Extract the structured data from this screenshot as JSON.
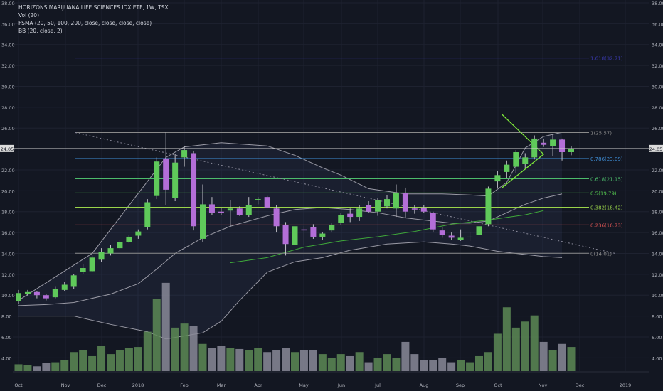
{
  "legend": {
    "title": "HORIZONS MARIJUANA LIFE SCIENCES IDX ETF, 1W, TSX",
    "vol": "Vol (20)",
    "fsma": "FSMA (20, 50, 100, 200, close, close, close, close)",
    "bb": "BB (20, close, 2)"
  },
  "colors": {
    "background": "#131722",
    "up": "#5fc95a",
    "down": "#b36ed8",
    "volume_up": "#5d8a55",
    "volume_down": "#8a8a98",
    "text": "#b2b5be",
    "grid": "#1e2230",
    "price_line": "#d0d0d0"
  },
  "chart_data": {
    "type": "candlestick",
    "ylim": [
      3,
      38
    ],
    "y_ticks": [
      "4.00",
      "6.00",
      "8.00",
      "10.00",
      "12.00",
      "14.00",
      "16.00",
      "18.00",
      "20.00",
      "22.00",
      "24.00",
      "26.00",
      "28.00",
      "30.00",
      "32.00",
      "34.00",
      "36.00",
      "38.00"
    ],
    "x_ticks": [
      "Oct",
      "Nov",
      "Dec",
      "2018",
      "Feb",
      "Mar",
      "Apr",
      "May",
      "Jun",
      "Jul",
      "Aug",
      "Sep",
      "Oct",
      "Nov",
      "Dec",
      "2019"
    ],
    "last_price": "24.05",
    "candles": [
      {
        "o": 9.4,
        "h": 10.5,
        "l": 9.2,
        "c": 10.2
      },
      {
        "o": 10.1,
        "h": 10.5,
        "l": 9.9,
        "c": 10.3
      },
      {
        "o": 10.3,
        "h": 10.4,
        "l": 9.7,
        "c": 10.0
      },
      {
        "o": 10.0,
        "h": 10.1,
        "l": 9.5,
        "c": 9.7
      },
      {
        "o": 9.8,
        "h": 10.8,
        "l": 9.7,
        "c": 10.6
      },
      {
        "o": 10.5,
        "h": 11.3,
        "l": 10.4,
        "c": 11.0
      },
      {
        "o": 10.8,
        "h": 12.0,
        "l": 10.6,
        "c": 11.9
      },
      {
        "o": 12.2,
        "h": 13.0,
        "l": 12.0,
        "c": 12.6
      },
      {
        "o": 12.3,
        "h": 13.8,
        "l": 12.2,
        "c": 13.6
      },
      {
        "o": 13.4,
        "h": 14.5,
        "l": 13.2,
        "c": 14.1
      },
      {
        "o": 14.0,
        "h": 14.8,
        "l": 13.8,
        "c": 14.5
      },
      {
        "o": 14.5,
        "h": 15.3,
        "l": 14.3,
        "c": 15.1
      },
      {
        "o": 15.1,
        "h": 15.8,
        "l": 15.0,
        "c": 15.6
      },
      {
        "o": 15.7,
        "h": 16.3,
        "l": 15.4,
        "c": 16.1
      },
      {
        "o": 16.5,
        "h": 19.2,
        "l": 16.3,
        "c": 18.9
      },
      {
        "o": 19.5,
        "h": 23.2,
        "l": 19.2,
        "c": 22.8
      },
      {
        "o": 23.1,
        "h": 25.6,
        "l": 18.6,
        "c": 20.1
      },
      {
        "o": 19.3,
        "h": 23.5,
        "l": 19.0,
        "c": 22.7
      },
      {
        "o": 23.2,
        "h": 24.3,
        "l": 22.3,
        "c": 23.9
      },
      {
        "o": 23.6,
        "h": 23.8,
        "l": 16.2,
        "c": 16.6
      },
      {
        "o": 15.4,
        "h": 20.6,
        "l": 15.1,
        "c": 18.7
      },
      {
        "o": 18.7,
        "h": 19.4,
        "l": 17.7,
        "c": 17.9
      },
      {
        "o": 18.0,
        "h": 18.4,
        "l": 17.7,
        "c": 17.9
      },
      {
        "o": 18.1,
        "h": 19.1,
        "l": 16.5,
        "c": 18.3
      },
      {
        "o": 18.3,
        "h": 18.5,
        "l": 17.6,
        "c": 17.7
      },
      {
        "o": 17.7,
        "h": 19.4,
        "l": 17.5,
        "c": 18.6
      },
      {
        "o": 19.1,
        "h": 19.4,
        "l": 18.7,
        "c": 19.2
      },
      {
        "o": 19.4,
        "h": 19.5,
        "l": 18.4,
        "c": 18.4
      },
      {
        "o": 18.3,
        "h": 18.6,
        "l": 16.0,
        "c": 16.6
      },
      {
        "o": 16.7,
        "h": 17.0,
        "l": 13.8,
        "c": 14.9
      },
      {
        "o": 14.8,
        "h": 17.0,
        "l": 14.0,
        "c": 16.6
      },
      {
        "o": 16.3,
        "h": 16.6,
        "l": 14.8,
        "c": 16.2
      },
      {
        "o": 16.5,
        "h": 16.8,
        "l": 15.4,
        "c": 15.6
      },
      {
        "o": 15.6,
        "h": 16.0,
        "l": 15.3,
        "c": 15.9
      },
      {
        "o": 16.2,
        "h": 16.9,
        "l": 16.0,
        "c": 16.7
      },
      {
        "o": 16.9,
        "h": 17.9,
        "l": 16.7,
        "c": 17.7
      },
      {
        "o": 17.8,
        "h": 18.3,
        "l": 17.0,
        "c": 17.5
      },
      {
        "o": 17.5,
        "h": 18.6,
        "l": 17.1,
        "c": 18.3
      },
      {
        "o": 18.6,
        "h": 19.0,
        "l": 17.9,
        "c": 18.0
      },
      {
        "o": 18.0,
        "h": 19.3,
        "l": 17.6,
        "c": 19.1
      },
      {
        "o": 18.5,
        "h": 19.6,
        "l": 18.3,
        "c": 19.2
      },
      {
        "o": 18.3,
        "h": 20.6,
        "l": 17.5,
        "c": 19.8
      },
      {
        "o": 19.8,
        "h": 20.3,
        "l": 17.4,
        "c": 18.0
      },
      {
        "o": 18.3,
        "h": 18.6,
        "l": 17.8,
        "c": 18.2
      },
      {
        "o": 18.4,
        "h": 18.6,
        "l": 17.9,
        "c": 18.0
      },
      {
        "o": 17.9,
        "h": 18.0,
        "l": 16.0,
        "c": 16.3
      },
      {
        "o": 16.2,
        "h": 16.5,
        "l": 15.5,
        "c": 15.8
      },
      {
        "o": 15.7,
        "h": 16.0,
        "l": 15.3,
        "c": 15.5
      },
      {
        "o": 15.3,
        "h": 16.3,
        "l": 15.2,
        "c": 15.5
      },
      {
        "o": 15.6,
        "h": 16.0,
        "l": 15.2,
        "c": 15.6
      },
      {
        "o": 15.8,
        "h": 16.9,
        "l": 14.6,
        "c": 16.6
      },
      {
        "o": 16.8,
        "h": 20.4,
        "l": 16.6,
        "c": 20.2
      },
      {
        "o": 20.9,
        "h": 21.9,
        "l": 20.3,
        "c": 21.5
      },
      {
        "o": 21.8,
        "h": 22.9,
        "l": 21.2,
        "c": 22.5
      },
      {
        "o": 22.3,
        "h": 23.9,
        "l": 21.7,
        "c": 23.7
      },
      {
        "o": 22.6,
        "h": 23.6,
        "l": 22.2,
        "c": 23.2
      },
      {
        "o": 23.2,
        "h": 25.3,
        "l": 23.0,
        "c": 25.0
      },
      {
        "o": 24.6,
        "h": 25.0,
        "l": 24.2,
        "c": 24.4
      },
      {
        "o": 24.3,
        "h": 25.4,
        "l": 23.3,
        "c": 24.9
      },
      {
        "o": 24.9,
        "h": 25.0,
        "l": 22.9,
        "c": 23.7
      },
      {
        "o": 23.7,
        "h": 24.3,
        "l": 23.4,
        "c": 24.05
      }
    ],
    "volume": [
      0.4,
      0.35,
      0.3,
      0.45,
      0.5,
      0.6,
      1.0,
      1.1,
      0.8,
      1.3,
      0.9,
      1.1,
      1.2,
      1.25,
      2.0,
      3.6,
      4.4,
      2.2,
      2.4,
      2.3,
      1.4,
      1.2,
      1.3,
      1.2,
      1.15,
      1.1,
      1.2,
      1.0,
      1.1,
      1.2,
      1.0,
      1.1,
      1.1,
      0.9,
      0.7,
      0.9,
      0.8,
      1.0,
      0.5,
      0.7,
      0.9,
      0.7,
      1.5,
      0.9,
      0.6,
      0.6,
      0.7,
      0.5,
      0.6,
      0.5,
      0.8,
      1.0,
      1.9,
      3.2,
      2.2,
      2.5,
      2.8,
      1.5,
      1.1,
      1.4,
      1.25
    ],
    "series": [
      {
        "name": "",
        "kind": "bb_upper",
        "points": [
          [
            0,
            9.5
          ],
          [
            8,
            14
          ],
          [
            16,
            23.2
          ],
          [
            18,
            24.2
          ],
          [
            22,
            24.6
          ],
          [
            27,
            24.3
          ],
          [
            30,
            23.4
          ],
          [
            33,
            22.2
          ],
          [
            35,
            21.5
          ],
          [
            38,
            20.2
          ],
          [
            42,
            19.7
          ],
          [
            46,
            19.7
          ],
          [
            49,
            19.6
          ],
          [
            51,
            19.5
          ],
          [
            53,
            20.8
          ],
          [
            55,
            24.1
          ],
          [
            57,
            25.2
          ],
          [
            59,
            25.6
          ]
        ]
      },
      {
        "name": "",
        "kind": "bb_lower",
        "points": [
          [
            0,
            8
          ],
          [
            6,
            8
          ],
          [
            10,
            7.2
          ],
          [
            14,
            6.5
          ],
          [
            16,
            5.8
          ],
          [
            18,
            6.1
          ],
          [
            20,
            6.4
          ],
          [
            22,
            7.5
          ],
          [
            24,
            9.5
          ],
          [
            27,
            12.2
          ],
          [
            30,
            13.2
          ],
          [
            33,
            13.6
          ],
          [
            36,
            14.3
          ],
          [
            40,
            14.9
          ],
          [
            44,
            15.1
          ],
          [
            47,
            14.9
          ],
          [
            49,
            14.7
          ],
          [
            52,
            14.2
          ],
          [
            54,
            14.0
          ],
          [
            57,
            13.7
          ],
          [
            59,
            13.6
          ]
        ]
      },
      {
        "name": "",
        "kind": "basis",
        "points": [
          [
            0,
            9.0
          ],
          [
            3,
            9.1
          ],
          [
            6,
            9.3
          ],
          [
            10,
            10.1
          ],
          [
            13,
            11.1
          ],
          [
            15,
            12.5
          ],
          [
            17,
            14.0
          ],
          [
            20,
            15.5
          ],
          [
            23,
            16.6
          ],
          [
            27,
            17.6
          ],
          [
            30,
            18.2
          ],
          [
            33,
            18.4
          ],
          [
            36,
            18.2
          ],
          [
            39,
            17.9
          ],
          [
            42,
            17.4
          ],
          [
            44,
            17.2
          ],
          [
            47,
            16.9
          ],
          [
            49,
            16.9
          ],
          [
            51,
            17.1
          ],
          [
            53,
            17.9
          ],
          [
            55,
            18.7
          ],
          [
            57,
            19.3
          ],
          [
            59,
            19.7
          ]
        ]
      },
      {
        "name": "",
        "kind": "trend",
        "points": [
          [
            23,
            13.1
          ],
          [
            27,
            13.6
          ],
          [
            31,
            14.6
          ],
          [
            35,
            15.2
          ],
          [
            39,
            15.6
          ],
          [
            43,
            16.1
          ],
          [
            47,
            16.8
          ],
          [
            51,
            17.2
          ],
          [
            55,
            17.7
          ],
          [
            57,
            18.1
          ]
        ]
      }
    ],
    "fib_levels": [
      {
        "label": "1.618(32.71)",
        "value": 32.71,
        "color": "#3a3ab0"
      },
      {
        "label": "1(25.57)",
        "value": 25.57,
        "color": "#8a8a8a"
      },
      {
        "label": "0.786(23.09)",
        "value": 23.09,
        "color": "#3f8fd8"
      },
      {
        "label": "0.618(21.15)",
        "value": 21.15,
        "color": "#4cbb6b"
      },
      {
        "label": "0.5(19.79)",
        "value": 19.79,
        "color": "#55c850"
      },
      {
        "label": "0.382(18.42)",
        "value": 18.42,
        "color": "#9ad44a"
      },
      {
        "label": "0.236(16.73)",
        "value": 16.73,
        "color": "#e05555"
      },
      {
        "label": "0(14.01)",
        "value": 14.01,
        "color": "#8a8a8a"
      }
    ],
    "drawn_lines": [
      {
        "kind": "dotted-trend",
        "from": [
          0,
          25.57
        ],
        "to": [
          64,
          14.0
        ],
        "color": "#8a8a9a"
      },
      {
        "kind": "triangle",
        "points": [
          [
            52.5,
            27.3
          ],
          [
            57,
            23.5
          ],
          [
            52.5,
            20.3
          ]
        ],
        "color": "#7ee83a"
      }
    ],
    "grid": true,
    "legend_position": "top-left"
  }
}
